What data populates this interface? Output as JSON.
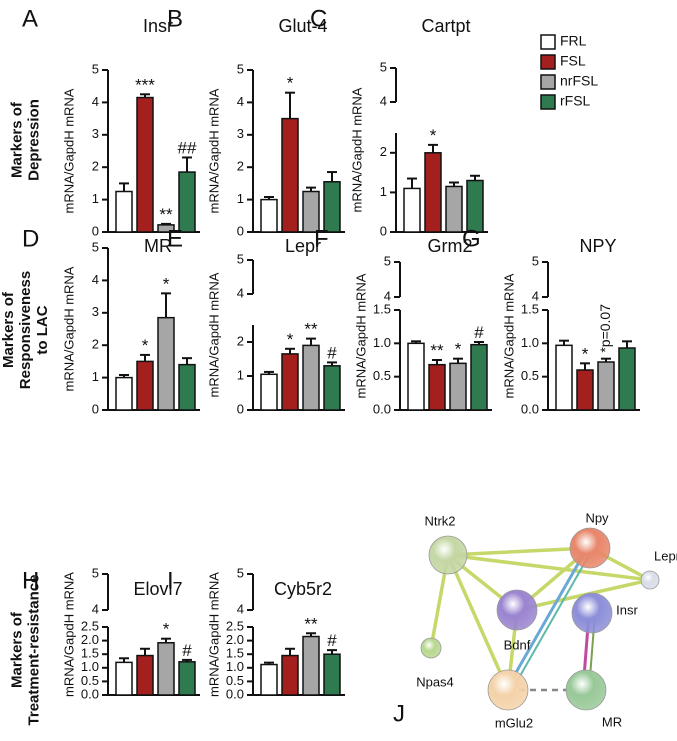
{
  "row_labels": [
    [
      "Markers of",
      "Depression"
    ],
    [
      "Markers of",
      "Responsiveness",
      "to LAC"
    ],
    [
      "Markers of",
      "Treatment-resistance"
    ]
  ],
  "legend": {
    "categories": [
      "FRL",
      "FSL",
      "nrFSL",
      "rFSL"
    ],
    "colors": [
      "#ffffff",
      "#a3201f",
      "#a6a6a6",
      "#2f7a4f"
    ]
  },
  "chart_data": [
    {
      "type": "bar",
      "letter": "A",
      "title": "Insr",
      "ylabel": "mRNA/GapdH mRNA",
      "ylim": [
        0,
        5
      ],
      "yticks": [
        0,
        1,
        2,
        3,
        4,
        5
      ],
      "values": [
        1.25,
        4.15,
        0.22,
        1.85
      ],
      "errors": [
        0.25,
        0.1,
        0.03,
        0.45
      ],
      "annotations": [
        null,
        "***",
        "**",
        "##"
      ]
    },
    {
      "type": "bar",
      "letter": "B",
      "title": "Glut-4",
      "ylabel": "mRNA/GapdH mRNA",
      "ylim": [
        0,
        5
      ],
      "yticks": [
        0,
        1,
        2,
        3,
        4,
        5
      ],
      "values": [
        1.0,
        3.5,
        1.25,
        1.55
      ],
      "errors": [
        0.08,
        0.8,
        0.12,
        0.3
      ],
      "annotations": [
        null,
        "*",
        null,
        null
      ]
    },
    {
      "type": "bar",
      "letter": "C",
      "title": "Cartpt",
      "ylabel": "mRNA/GapdH mRNA",
      "ylim": [
        0,
        2.5
      ],
      "yticks": [
        0,
        1,
        2
      ],
      "upper_ylim": [
        4,
        5
      ],
      "upper_yticks": [
        4,
        5
      ],
      "values": [
        1.1,
        2.0,
        1.15,
        1.3
      ],
      "errors": [
        0.25,
        0.2,
        0.1,
        0.12
      ],
      "annotations": [
        null,
        "*",
        null,
        null
      ]
    },
    {
      "type": "bar",
      "letter": "D",
      "title": "MR",
      "ylabel": "mRNA/GapdH mRNA",
      "ylim": [
        0,
        5
      ],
      "yticks": [
        0,
        1,
        2,
        3,
        4,
        5
      ],
      "values": [
        1.0,
        1.5,
        2.85,
        1.4
      ],
      "errors": [
        0.08,
        0.2,
        0.75,
        0.2
      ],
      "annotations": [
        null,
        "*",
        "*",
        null
      ]
    },
    {
      "type": "bar",
      "letter": "E",
      "title": "Lepr",
      "ylabel": "mRNA/GapdH mRNA",
      "ylim": [
        0,
        2.5
      ],
      "yticks": [
        0,
        1,
        2
      ],
      "upper_ylim": [
        4,
        5
      ],
      "upper_yticks": [
        4,
        5
      ],
      "values": [
        1.05,
        1.65,
        1.9,
        1.3
      ],
      "errors": [
        0.07,
        0.15,
        0.2,
        0.1
      ],
      "annotations": [
        null,
        "*",
        "**",
        "#"
      ]
    },
    {
      "type": "bar",
      "letter": "F",
      "title": "Grm2",
      "ylabel": "mRNA/GapdH mRNA",
      "ylim": [
        0,
        1.5
      ],
      "yticks": [
        {
          "value": 0,
          "label": "0.0"
        },
        0.5,
        {
          "value": 1,
          "label": "1.0"
        },
        1.5
      ],
      "upper_ylim": [
        4,
        5
      ],
      "upper_yticks": [
        4,
        5
      ],
      "values": [
        1.0,
        0.68,
        0.7,
        0.98
      ],
      "errors": [
        0.03,
        0.07,
        0.07,
        0.04
      ],
      "annotations": [
        null,
        "**",
        "*",
        "#"
      ]
    },
    {
      "type": "bar",
      "letter": "G",
      "title": "NPY",
      "ylabel": "mRNA/GapdH mRNA",
      "ylim": [
        0,
        1.5
      ],
      "yticks": [
        {
          "value": 0,
          "label": "0.0"
        },
        0.5,
        {
          "value": 1,
          "label": "1.0"
        },
        1.5
      ],
      "upper_ylim": [
        4,
        5
      ],
      "upper_yticks": [
        4,
        5
      ],
      "values": [
        0.97,
        0.6,
        0.72,
        0.93
      ],
      "errors": [
        0.07,
        0.1,
        0.05,
        0.1
      ],
      "annotations": [
        null,
        "*",
        "*p=0.07",
        null
      ]
    },
    {
      "type": "bar",
      "letter": "H",
      "title": "Elovl7",
      "ylabel": "mRNA/GapdH mRNA",
      "ylim": [
        0,
        2.5
      ],
      "yticks": [
        {
          "value": 0,
          "label": "0.0"
        },
        0.5,
        {
          "value": 1,
          "label": "1.0"
        },
        1.5,
        {
          "value": 2,
          "label": "2.0"
        },
        2.5
      ],
      "upper_ylim": [
        4,
        5
      ],
      "upper_yticks": [
        4,
        5
      ],
      "values": [
        1.2,
        1.45,
        1.92,
        1.22
      ],
      "errors": [
        0.15,
        0.25,
        0.15,
        0.07
      ],
      "annotations": [
        null,
        null,
        "*",
        "#"
      ]
    },
    {
      "type": "bar",
      "letter": "I",
      "title": "Cyb5r2",
      "ylabel": "mRNA/GapdH mRNA",
      "ylim": [
        0,
        2.5
      ],
      "yticks": [
        {
          "value": 0,
          "label": "0.0"
        },
        0.5,
        {
          "value": 1,
          "label": "1.0"
        },
        1.5,
        {
          "value": 2,
          "label": "2.0"
        },
        2.5
      ],
      "upper_ylim": [
        4,
        5
      ],
      "upper_yticks": [
        4,
        5
      ],
      "values": [
        1.12,
        1.45,
        2.15,
        1.5
      ],
      "errors": [
        0.07,
        0.25,
        0.12,
        0.15
      ],
      "annotations": [
        null,
        null,
        "**",
        "#"
      ]
    }
  ],
  "network": {
    "letter": "J",
    "nodes": [
      "Ntrk2",
      "Npy",
      "Lepr",
      "Bdnf",
      "Insr",
      "Npas4",
      "mGlu2",
      "MR"
    ]
  }
}
